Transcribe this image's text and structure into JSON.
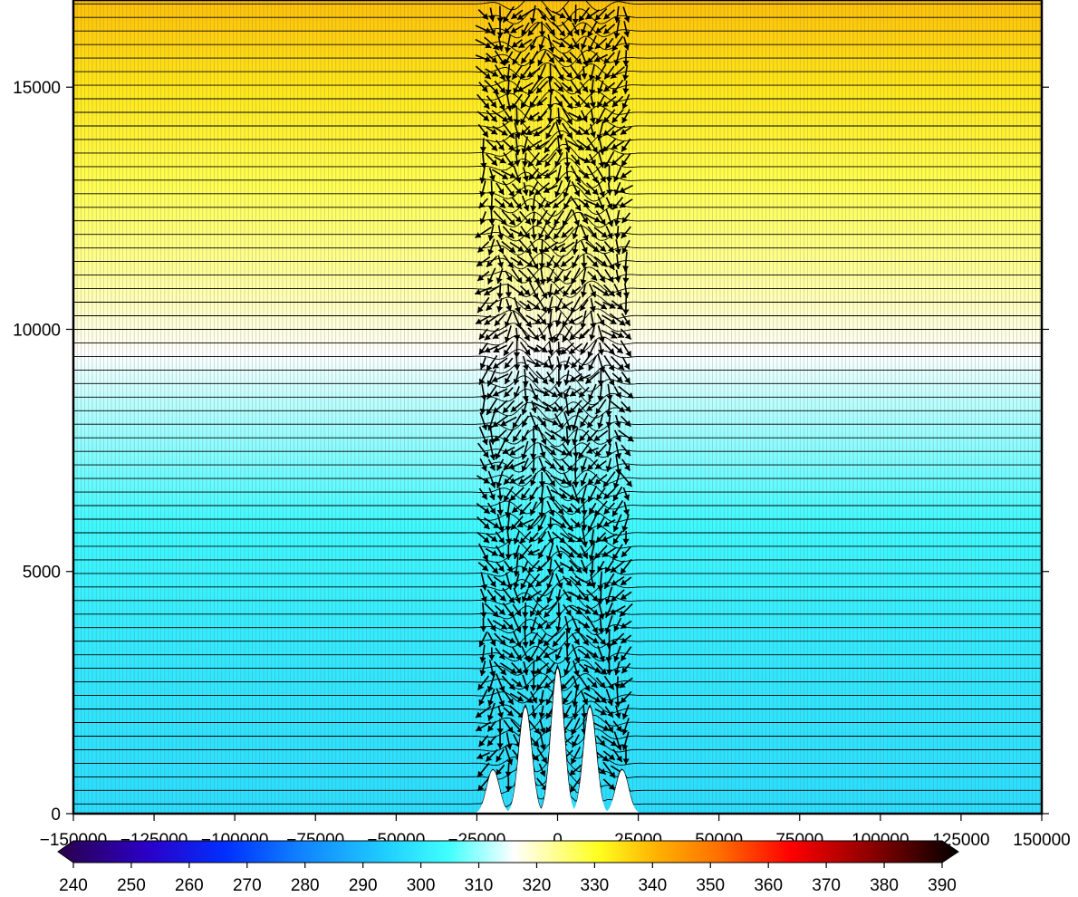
{
  "chart_data": {
    "type": "heatmap",
    "title": "",
    "xlabel": "",
    "ylabel": "",
    "xlim": [
      -150000,
      150000
    ],
    "ylim": [
      0,
      16800
    ],
    "x_ticks": [
      -150000,
      -125000,
      -100000,
      -75000,
      -50000,
      -25000,
      0,
      25000,
      50000,
      75000,
      100000,
      125000,
      150000
    ],
    "x_tick_labels": [
      "-150000",
      "-125000",
      "-100000",
      "-75000",
      "-50000",
      "-25000",
      "0",
      "25000",
      "50000",
      "75000",
      "100000",
      "125000",
      "150000"
    ],
    "y_ticks": [
      0,
      5000,
      10000,
      15000
    ],
    "y_tick_labels": [
      "0",
      "5000",
      "10000",
      "15000"
    ],
    "field_profile": [
      {
        "z": 0,
        "value": 298
      },
      {
        "z": 3000,
        "value": 300
      },
      {
        "z": 6000,
        "value": 304
      },
      {
        "z": 8500,
        "value": 312
      },
      {
        "z": 9500,
        "value": 316
      },
      {
        "z": 11000,
        "value": 322
      },
      {
        "z": 13000,
        "value": 327
      },
      {
        "z": 15000,
        "value": 333
      },
      {
        "z": 16800,
        "value": 338
      }
    ],
    "terrain_peaks": [
      {
        "x": -10000,
        "height": 2200
      },
      {
        "x": 0,
        "height": 3000
      },
      {
        "x": 10000,
        "height": 2200
      },
      {
        "x": -20000,
        "height": 900
      },
      {
        "x": 20000,
        "height": 900
      }
    ],
    "vector_region": {
      "x_min": -25000,
      "x_max": 25000
    },
    "colorbar": {
      "ticks": [
        240,
        250,
        260,
        270,
        280,
        290,
        300,
        310,
        320,
        330,
        340,
        350,
        360,
        370,
        380,
        390
      ],
      "tick_labels": [
        "240",
        "250",
        "260",
        "270",
        "280",
        "290",
        "300",
        "310",
        "320",
        "330",
        "340",
        "350",
        "360",
        "370",
        "380",
        "390"
      ],
      "range": [
        240,
        390
      ],
      "stops": [
        {
          "value": 240,
          "color": "#2a004a"
        },
        {
          "value": 255,
          "color": "#2b00c8"
        },
        {
          "value": 268,
          "color": "#0030ff"
        },
        {
          "value": 280,
          "color": "#1080ff"
        },
        {
          "value": 295,
          "color": "#20d0ff"
        },
        {
          "value": 305,
          "color": "#40ffff"
        },
        {
          "value": 316,
          "color": "#ffffff"
        },
        {
          "value": 330,
          "color": "#ffff20"
        },
        {
          "value": 340,
          "color": "#ffb000"
        },
        {
          "value": 350,
          "color": "#ff7000"
        },
        {
          "value": 362,
          "color": "#ff0000"
        },
        {
          "value": 375,
          "color": "#900000"
        },
        {
          "value": 390,
          "color": "#000000"
        }
      ]
    }
  }
}
